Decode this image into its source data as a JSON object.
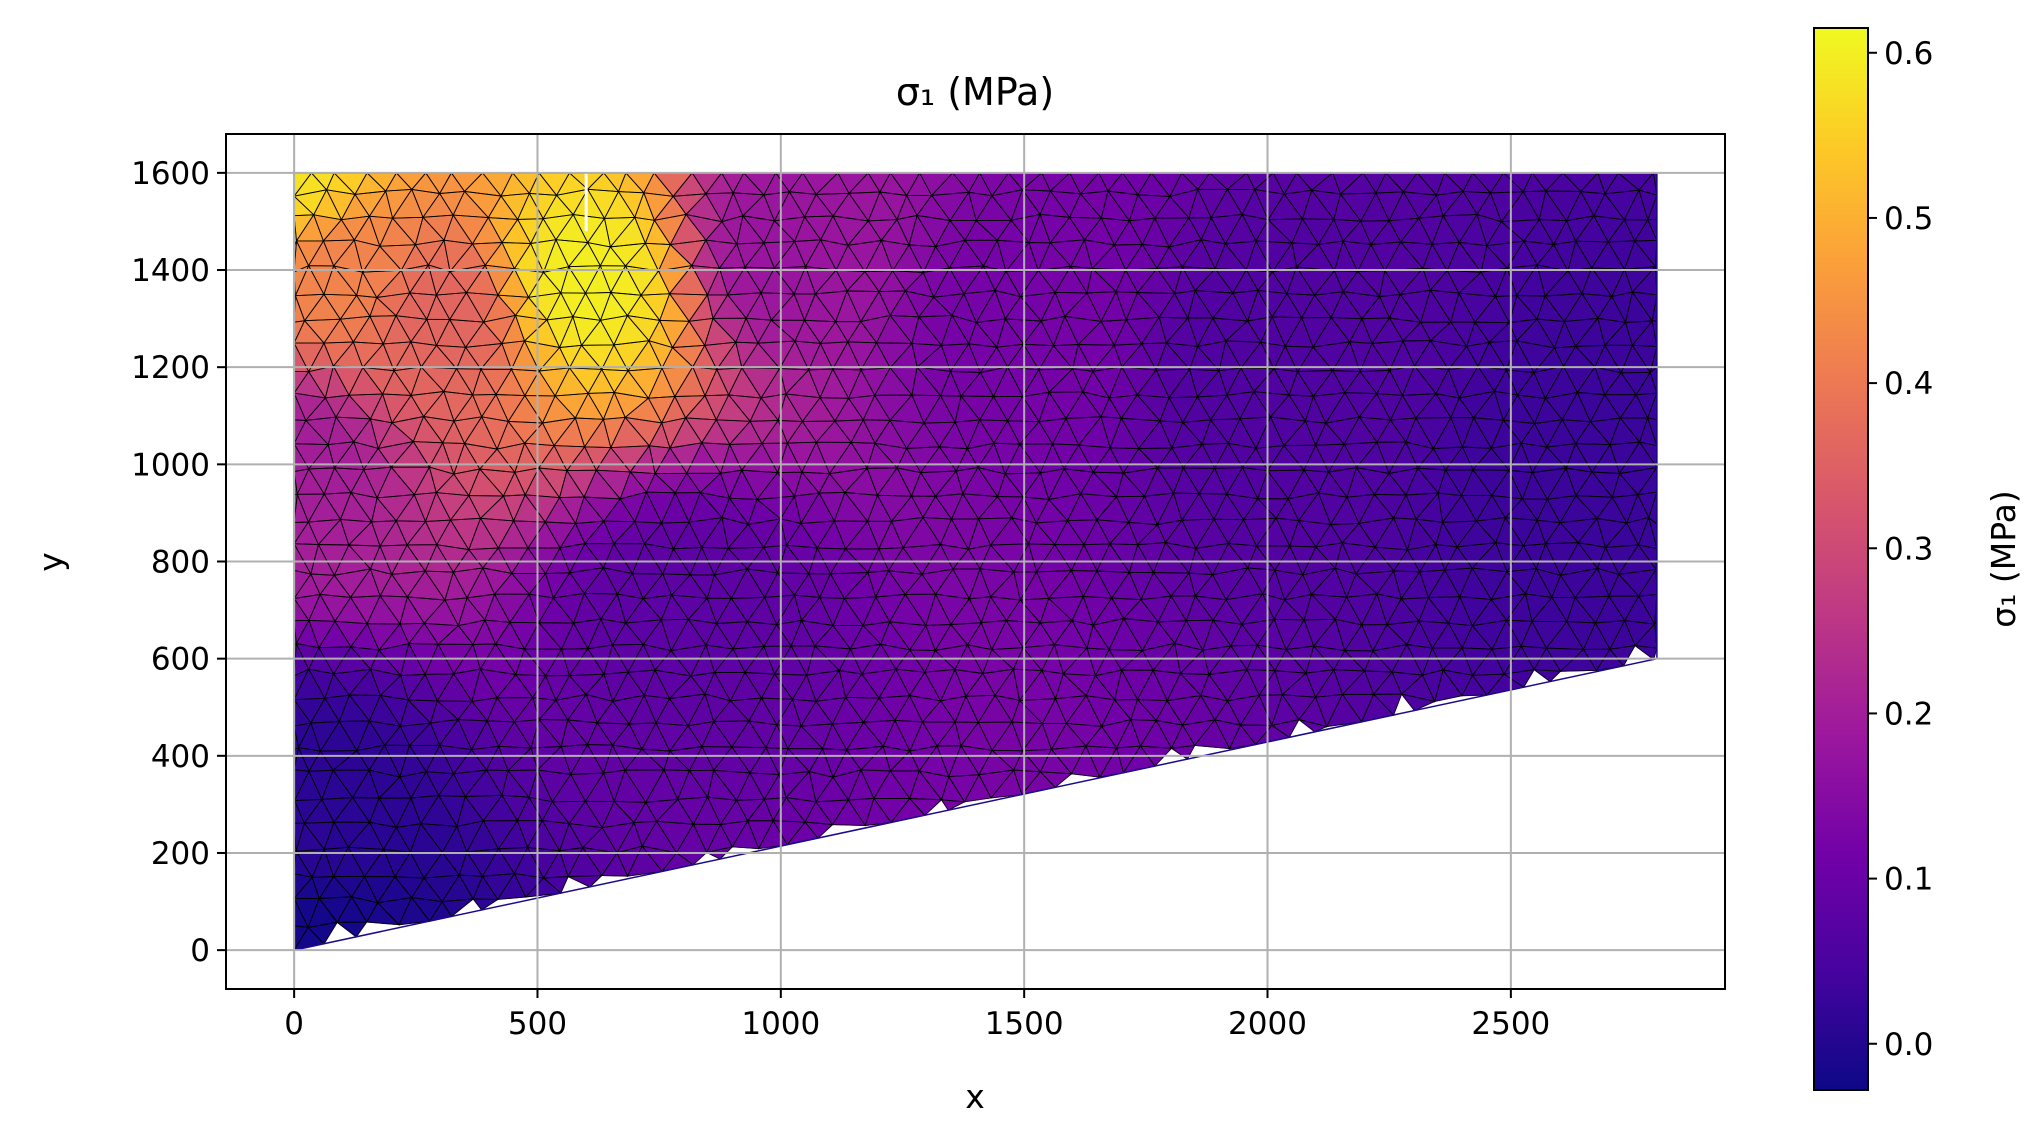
{
  "chart_data": {
    "type": "heatmap",
    "title": "σ₁ (MPa)",
    "xlabel": "x",
    "ylabel": "y",
    "xlim": [
      -140,
      2940
    ],
    "ylim": [
      -80,
      1680
    ],
    "x_ticks": [
      0,
      500,
      1000,
      1500,
      2000,
      2500
    ],
    "y_ticks": [
      0,
      200,
      400,
      600,
      800,
      1000,
      1200,
      1400,
      1600
    ],
    "grid": true,
    "domain_polygon": [
      [
        0,
        0
      ],
      [
        2800,
        600
      ],
      [
        2800,
        1600
      ],
      [
        0,
        1600
      ]
    ],
    "notch": {
      "x": 600,
      "y_from": 1480,
      "y_to": 1600
    },
    "mesh_spacing": 60,
    "colorbar": {
      "label": "σ₁ (MPa)",
      "colormap": "plasma",
      "min": -0.028,
      "max": 0.615,
      "ticks": [
        0.0,
        0.1,
        0.2,
        0.3,
        0.4,
        0.5,
        0.6
      ],
      "tick_labels": [
        "0.0",
        "0.1",
        "0.2",
        "0.3",
        "0.4",
        "0.5",
        "0.6"
      ]
    },
    "colormap_stops": [
      "#0d0887",
      "#46039f",
      "#7201a8",
      "#9c179e",
      "#bd3786",
      "#d8576b",
      "#ed7953",
      "#fb9f3a",
      "#fdca26",
      "#f0f921"
    ],
    "field_samples": [
      {
        "x": 0,
        "y": 1600,
        "value": 0.58
      },
      {
        "x": 600,
        "y": 1380,
        "value": 0.6
      },
      {
        "x": 100,
        "y": 1400,
        "value": 0.42
      },
      {
        "x": 300,
        "y": 1300,
        "value": 0.36
      },
      {
        "x": 0,
        "y": 1000,
        "value": 0.2
      },
      {
        "x": 1000,
        "y": 1450,
        "value": 0.18
      },
      {
        "x": 1500,
        "y": 1300,
        "value": 0.12
      },
      {
        "x": 2000,
        "y": 1200,
        "value": 0.06
      },
      {
        "x": 2700,
        "y": 1000,
        "value": 0.03
      },
      {
        "x": 800,
        "y": 700,
        "value": 0.08
      },
      {
        "x": 0,
        "y": 300,
        "value": 0.01
      },
      {
        "x": 0,
        "y": 0,
        "value": -0.02
      }
    ]
  }
}
